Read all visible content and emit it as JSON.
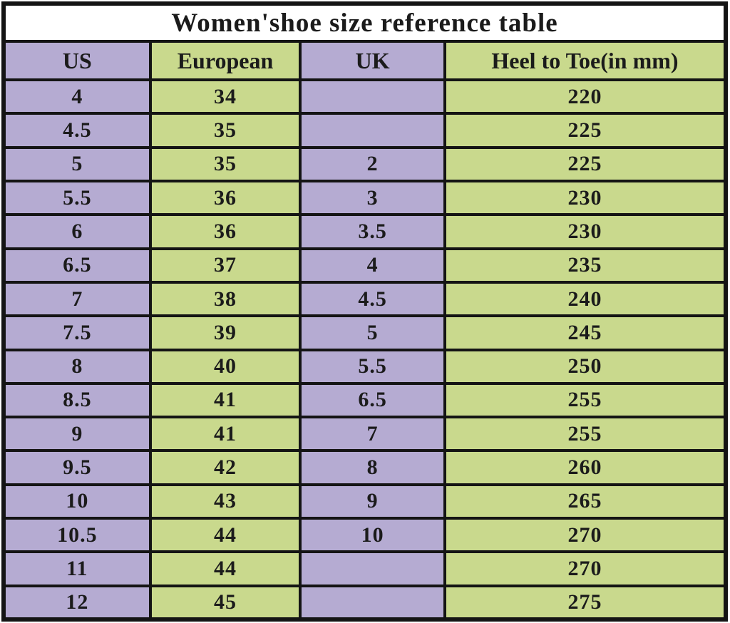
{
  "chart_data": {
    "type": "table",
    "title": "Women'shoe size reference table",
    "columns": [
      "US",
      "European",
      "UK",
      "Heel to Toe(in mm)"
    ],
    "rows": [
      [
        "4",
        "34",
        "",
        "220"
      ],
      [
        "4.5",
        "35",
        "",
        "225"
      ],
      [
        "5",
        "35",
        "2",
        "225"
      ],
      [
        "5.5",
        "36",
        "3",
        "230"
      ],
      [
        "6",
        "36",
        "3.5",
        "230"
      ],
      [
        "6.5",
        "37",
        "4",
        "235"
      ],
      [
        "7",
        "38",
        "4.5",
        "240"
      ],
      [
        "7.5",
        "39",
        "5",
        "245"
      ],
      [
        "8",
        "40",
        "5.5",
        "250"
      ],
      [
        "8.5",
        "41",
        "6.5",
        "255"
      ],
      [
        "9",
        "41",
        "7",
        "255"
      ],
      [
        "9.5",
        "42",
        "8",
        "260"
      ],
      [
        "10",
        "43",
        "9",
        "265"
      ],
      [
        "10.5",
        "44",
        "10",
        "270"
      ],
      [
        "11",
        "44",
        "",
        "270"
      ],
      [
        "12",
        "45",
        "",
        "275"
      ]
    ],
    "layout": {
      "column_backgrounds": [
        "purple",
        "green",
        "purple",
        "green"
      ],
      "grid": true,
      "legend": "none"
    }
  },
  "colors": {
    "purple_column_bg": "#b5abd2",
    "green_column_bg": "#c9d98d",
    "border": "#141414",
    "title_bg": "#ffffff",
    "text": "#1b1b1b"
  }
}
